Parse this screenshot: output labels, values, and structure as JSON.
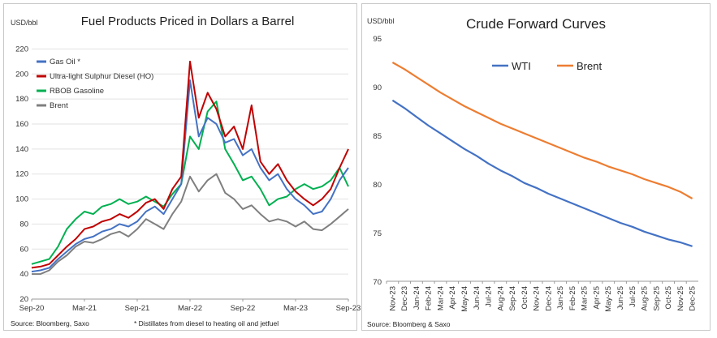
{
  "left": {
    "chart_data": {
      "type": "line",
      "title": "Fuel Products Priced in Dollars a Barrel",
      "ylabel": "USD/bbl",
      "ylim": [
        20,
        230
      ],
      "yticks": [
        20,
        40,
        60,
        80,
        100,
        120,
        140,
        160,
        180,
        200,
        220
      ],
      "x_range": [
        "2020-09",
        "2023-09"
      ],
      "xticks": [
        {
          "date": "2020-09",
          "label": "Sep-20"
        },
        {
          "date": "2021-03",
          "label": "Mar-21"
        },
        {
          "date": "2021-09",
          "label": "Sep-21"
        },
        {
          "date": "2022-03",
          "label": "Mar-22"
        },
        {
          "date": "2022-09",
          "label": "Sep-22"
        },
        {
          "date": "2023-03",
          "label": "Mar-23"
        },
        {
          "date": "2023-09",
          "label": "Sep-23"
        }
      ],
      "grid": true,
      "legend_position": "top-left",
      "series": [
        {
          "name": "Gas Oil *",
          "color": "#4472c4",
          "x": [
            "2020-09",
            "2020-10",
            "2020-11",
            "2020-12",
            "2021-01",
            "2021-02",
            "2021-03",
            "2021-04",
            "2021-05",
            "2021-06",
            "2021-07",
            "2021-08",
            "2021-09",
            "2021-10",
            "2021-11",
            "2021-12",
            "2022-01",
            "2022-02",
            "2022-03",
            "2022-04",
            "2022-05",
            "2022-06",
            "2022-07",
            "2022-08",
            "2022-09",
            "2022-10",
            "2022-11",
            "2022-12",
            "2023-01",
            "2023-02",
            "2023-03",
            "2023-04",
            "2023-05",
            "2023-06",
            "2023-07",
            "2023-08",
            "2023-09"
          ],
          "values": [
            42,
            43,
            45,
            52,
            58,
            64,
            68,
            70,
            74,
            76,
            80,
            78,
            82,
            90,
            94,
            88,
            100,
            112,
            195,
            150,
            165,
            160,
            145,
            148,
            135,
            140,
            125,
            115,
            120,
            108,
            100,
            95,
            88,
            90,
            100,
            115,
            125
          ]
        },
        {
          "name": "Ultra-light Sulphur Diesel (HO)",
          "color": "#c00000",
          "x": [
            "2020-09",
            "2020-10",
            "2020-11",
            "2020-12",
            "2021-01",
            "2021-02",
            "2021-03",
            "2021-04",
            "2021-05",
            "2021-06",
            "2021-07",
            "2021-08",
            "2021-09",
            "2021-10",
            "2021-11",
            "2021-12",
            "2022-01",
            "2022-02",
            "2022-03",
            "2022-04",
            "2022-05",
            "2022-06",
            "2022-07",
            "2022-08",
            "2022-09",
            "2022-10",
            "2022-11",
            "2022-12",
            "2023-01",
            "2023-02",
            "2023-03",
            "2023-04",
            "2023-05",
            "2023-06",
            "2023-07",
            "2023-08",
            "2023-09"
          ],
          "values": [
            45,
            46,
            48,
            55,
            62,
            68,
            76,
            78,
            82,
            84,
            88,
            85,
            90,
            97,
            100,
            92,
            108,
            118,
            210,
            165,
            185,
            172,
            150,
            158,
            140,
            175,
            130,
            120,
            128,
            115,
            106,
            100,
            95,
            100,
            108,
            125,
            140
          ]
        },
        {
          "name": "RBOB Gasoline",
          "color": "#00b050",
          "x": [
            "2020-09",
            "2020-10",
            "2020-11",
            "2020-12",
            "2021-01",
            "2021-02",
            "2021-03",
            "2021-04",
            "2021-05",
            "2021-06",
            "2021-07",
            "2021-08",
            "2021-09",
            "2021-10",
            "2021-11",
            "2021-12",
            "2022-01",
            "2022-02",
            "2022-03",
            "2022-04",
            "2022-05",
            "2022-06",
            "2022-07",
            "2022-08",
            "2022-09",
            "2022-10",
            "2022-11",
            "2022-12",
            "2023-01",
            "2023-02",
            "2023-03",
            "2023-04",
            "2023-05",
            "2023-06",
            "2023-07",
            "2023-08",
            "2023-09"
          ],
          "values": [
            48,
            50,
            52,
            62,
            76,
            84,
            90,
            88,
            94,
            96,
            100,
            96,
            98,
            102,
            98,
            94,
            104,
            112,
            150,
            140,
            170,
            178,
            140,
            128,
            115,
            118,
            108,
            95,
            100,
            102,
            108,
            112,
            108,
            110,
            115,
            125,
            110
          ]
        },
        {
          "name": "Brent",
          "color": "#7f7f7f",
          "x": [
            "2020-09",
            "2020-10",
            "2020-11",
            "2020-12",
            "2021-01",
            "2021-02",
            "2021-03",
            "2021-04",
            "2021-05",
            "2021-06",
            "2021-07",
            "2021-08",
            "2021-09",
            "2021-10",
            "2021-11",
            "2021-12",
            "2022-01",
            "2022-02",
            "2022-03",
            "2022-04",
            "2022-05",
            "2022-06",
            "2022-07",
            "2022-08",
            "2022-09",
            "2022-10",
            "2022-11",
            "2022-12",
            "2023-01",
            "2023-02",
            "2023-03",
            "2023-04",
            "2023-05",
            "2023-06",
            "2023-07",
            "2023-08",
            "2023-09"
          ],
          "values": [
            40,
            40,
            43,
            50,
            55,
            62,
            66,
            65,
            68,
            72,
            74,
            70,
            76,
            84,
            80,
            76,
            88,
            98,
            118,
            106,
            115,
            120,
            105,
            100,
            92,
            95,
            88,
            82,
            84,
            82,
            78,
            82,
            76,
            75,
            80,
            86,
            92
          ]
        }
      ]
    },
    "source": "Source: Bloomberg, Saxo",
    "footnote": "* Distillates from diesel to heating oil and jetfuel"
  },
  "right": {
    "chart_data": {
      "type": "line",
      "title": "Crude Forward Curves",
      "ylabel": "USD/bbl",
      "ylim": [
        70,
        95
      ],
      "yticks": [
        70,
        75,
        80,
        85,
        90,
        95
      ],
      "categories": [
        "Nov-23",
        "Dec-23",
        "Jan-24",
        "Feb-24",
        "Mar-24",
        "Apr-24",
        "May-24",
        "Jun-24",
        "Jul-24",
        "Aug-24",
        "Sep-24",
        "Oct-24",
        "Nov-24",
        "Dec-24",
        "Jan-25",
        "Feb-25",
        "Mar-25",
        "Apr-25",
        "May-25",
        "Jun-25",
        "Jul-25",
        "Aug-25",
        "Sep-25",
        "Oct-25",
        "Nov-25",
        "Dec-25"
      ],
      "grid": false,
      "legend_position": "top-center",
      "series": [
        {
          "name": "WTI",
          "color": "#4472c4",
          "values": [
            88.6,
            87.8,
            86.9,
            86.0,
            85.2,
            84.4,
            83.6,
            82.9,
            82.1,
            81.4,
            80.8,
            80.1,
            79.6,
            79.0,
            78.5,
            78.0,
            77.5,
            77.0,
            76.5,
            76.0,
            75.6,
            75.1,
            74.7,
            74.3,
            74.0,
            73.6
          ]
        },
        {
          "name": "Brent",
          "color": "#ed7d31",
          "values": [
            92.5,
            91.8,
            91.0,
            90.2,
            89.4,
            88.7,
            88.0,
            87.4,
            86.8,
            86.2,
            85.7,
            85.2,
            84.7,
            84.2,
            83.7,
            83.2,
            82.7,
            82.3,
            81.8,
            81.4,
            81.0,
            80.5,
            80.1,
            79.7,
            79.2,
            78.5
          ]
        }
      ]
    },
    "source": "Source: Bloomberg & Saxo"
  }
}
